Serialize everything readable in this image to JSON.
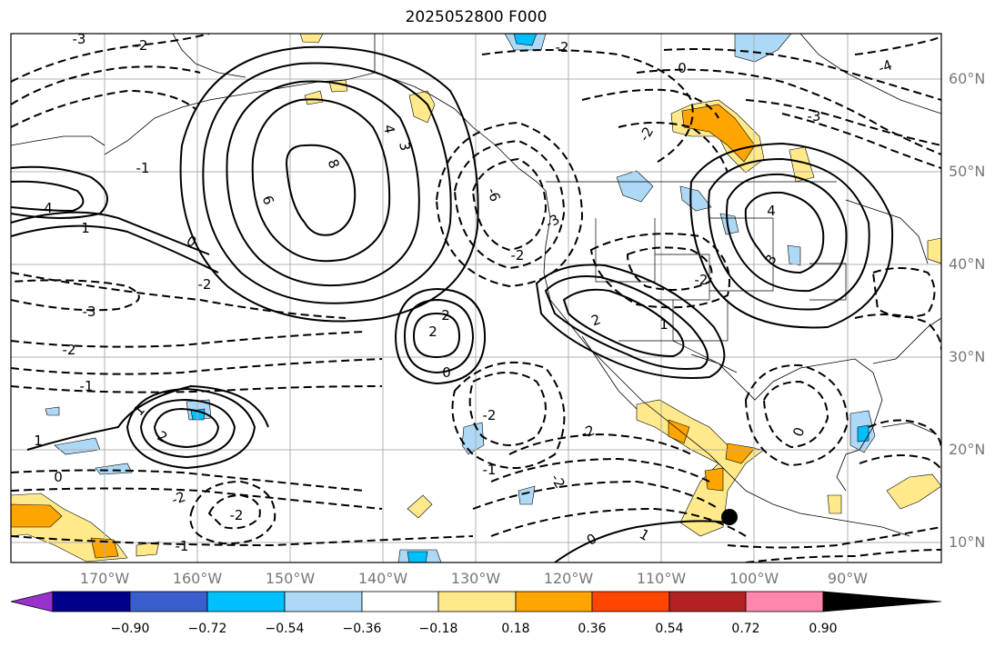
{
  "title": "2025052800 F000",
  "lat_labels": [
    "60°N",
    "50°N",
    "40°N",
    "30°N",
    "20°N",
    "10°N"
  ],
  "lon_labels": [
    "170°W",
    "160°W",
    "150°W",
    "140°W",
    "130°W",
    "120°W",
    "110°W",
    "100°W",
    "90°W"
  ],
  "colorbar": {
    "ticks": [
      "−0.90",
      "−0.72",
      "−0.54",
      "−0.36",
      "−0.18",
      "0.18",
      "0.36",
      "0.54",
      "0.72",
      "0.90"
    ],
    "colors": [
      "#9932cc",
      "#00008b",
      "#3a5fcd",
      "#00bfff",
      "#add8f6",
      "#ffffff",
      "#ffe98a",
      "#ffa500",
      "#ff4500",
      "#b22222",
      "#ff88aa"
    ]
  },
  "contour_labels": {
    "pos_8": "8",
    "pos_6": "6",
    "pos_4a": "4",
    "pos_3a": "3",
    "pos_4b": "4",
    "pos_1a": "1",
    "pos_2a": "2",
    "pos_2b": "2",
    "pos_1b": "1",
    "pos_2c": "2",
    "pos_4c": "4",
    "pos_3b": "3",
    "pos_2d": "2",
    "pos_1c": "1",
    "pos_1d": "1",
    "pos_1e": "1",
    "pos_0a": "0",
    "pos_0b": "0",
    "pos_0c": "0",
    "pos_0d": "0",
    "pos_0e": "0",
    "pos_0f": "0",
    "neg_3a": "-3",
    "neg_2a": "-2",
    "neg_1a": "-1",
    "neg_2b": "-2",
    "neg_2c": "-2",
    "neg_1b": "-1",
    "neg_2d": "-2",
    "neg_6": "-6",
    "neg_3b": "-3",
    "neg_2e": "-2",
    "neg_2f": "-2",
    "neg_2g": "-2",
    "neg_1c": "-1",
    "neg_2h": "-2",
    "neg_2i": "-2",
    "neg_3c": "-3",
    "neg_4": "-4",
    "neg_2j": "-2",
    "neg_1d": "-1",
    "neg_2k": "-2",
    "neg_3d": "-3",
    "neg_2l": "-2"
  }
}
